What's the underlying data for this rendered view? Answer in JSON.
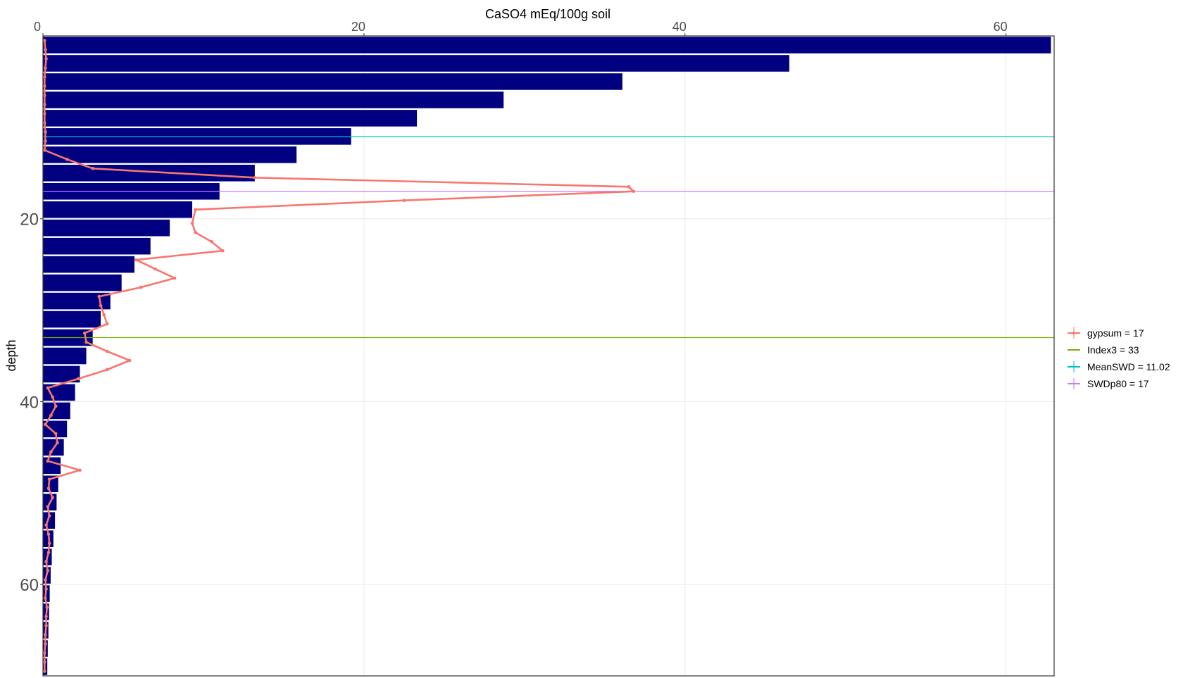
{
  "chart_data": {
    "type": "bar",
    "orientation": "horizontal",
    "title": "CaSO4 mEq/100g soil",
    "xlabel": "CaSO4 mEq/100g soil",
    "ylabel": "depth",
    "x_axis_position": "top",
    "y_axis_reversed": true,
    "xlim": [
      0,
      63
    ],
    "ylim": [
      0,
      70
    ],
    "x_ticks": [
      0,
      20,
      40,
      60
    ],
    "y_ticks": [
      20,
      40,
      60
    ],
    "grid": true,
    "legend_position": "right",
    "colors": {
      "bars": "#000080",
      "gypsum": "#F8766D",
      "index3": "#7CAE00",
      "meanswd": "#00BFC4",
      "swdp80": "#C77CFF",
      "grid": "#ebebeb",
      "border": "#333333"
    },
    "bars": {
      "depth_start": [
        0,
        2,
        4,
        6,
        8,
        10,
        12,
        14,
        16,
        18,
        20,
        22,
        24,
        26,
        28,
        30,
        32,
        34,
        36,
        38,
        40,
        42,
        44,
        46,
        48,
        50,
        52,
        54,
        56,
        58,
        60,
        62,
        64,
        66,
        68
      ],
      "depth_end": [
        2,
        4,
        6,
        8,
        10,
        12,
        14,
        16,
        18,
        20,
        22,
        24,
        26,
        28,
        30,
        32,
        34,
        36,
        38,
        40,
        42,
        44,
        46,
        48,
        50,
        52,
        54,
        56,
        58,
        60,
        62,
        64,
        66,
        68,
        70
      ],
      "values": [
        62.8,
        46.5,
        36.1,
        28.7,
        23.3,
        19.2,
        15.8,
        13.2,
        11.0,
        9.3,
        7.9,
        6.7,
        5.7,
        4.9,
        4.2,
        3.6,
        3.1,
        2.7,
        2.3,
        2.0,
        1.7,
        1.5,
        1.3,
        1.1,
        0.95,
        0.85,
        0.75,
        0.65,
        0.55,
        0.48,
        0.42,
        0.38,
        0.34,
        0.3,
        0.27
      ]
    },
    "series": [
      {
        "name": "gypsum",
        "depth": [
          0.5,
          1.5,
          2.5,
          3.5,
          4.5,
          5.5,
          6.5,
          7.5,
          8.5,
          9.5,
          10.5,
          11.5,
          12.5,
          13.5,
          14.5,
          15.5,
          16.5,
          17.0,
          18.0,
          19.0,
          20.5,
          21.5,
          22.5,
          23.5,
          24.5,
          25.5,
          26.5,
          27.5,
          28.5,
          29.5,
          30.5,
          31.5,
          32.5,
          33.5,
          34.5,
          35.5,
          36.5,
          37.5,
          38.5,
          39.5,
          40.5,
          41.5,
          42.5,
          43.5,
          44.5,
          45.5,
          46.5,
          47.5,
          48.5,
          49.5,
          50.5,
          51.5,
          52.5,
          53.5,
          54.5,
          55.5,
          56.5,
          57.5,
          58.5,
          59.5,
          60.5,
          61.5,
          62.5,
          63.5,
          64.5,
          65.5,
          66.5,
          67.5,
          68.5,
          69.5
        ],
        "values": [
          0.1,
          0.15,
          0.2,
          0.15,
          0.1,
          0.1,
          0.1,
          0.1,
          0.1,
          0.1,
          0.15,
          0.15,
          0.1,
          1.5,
          3.1,
          13.2,
          36.5,
          36.8,
          22.5,
          9.5,
          9.3,
          9.5,
          10.5,
          11.2,
          5.8,
          7.0,
          8.2,
          6.1,
          3.5,
          3.6,
          3.8,
          4.0,
          2.6,
          2.7,
          4.0,
          5.4,
          4.0,
          2.2,
          0.3,
          0.6,
          0.8,
          0.5,
          0.15,
          0.8,
          0.9,
          0.5,
          0.3,
          2.3,
          0.4,
          0.35,
          0.6,
          0.3,
          0.4,
          0.2,
          0.35,
          0.4,
          0.35,
          0.2,
          0.3,
          0.15,
          0.2,
          0.15,
          0.25,
          0.2,
          0.2,
          0.15,
          0.15,
          0.1,
          0.1,
          0.1
        ]
      }
    ],
    "hlines": [
      {
        "name": "Index3",
        "depth": 33
      },
      {
        "name": "MeanSWD",
        "depth": 11.02
      },
      {
        "name": "SWDp80",
        "depth": 17
      }
    ],
    "legend": [
      {
        "key": "gypsum",
        "label": "gypsum = 17"
      },
      {
        "key": "index3",
        "label": "Index3 =  33"
      },
      {
        "key": "meanswd",
        "label": "MeanSWD =  11.02"
      },
      {
        "key": "swdp80",
        "label": "SWDp80 =  17"
      }
    ]
  }
}
